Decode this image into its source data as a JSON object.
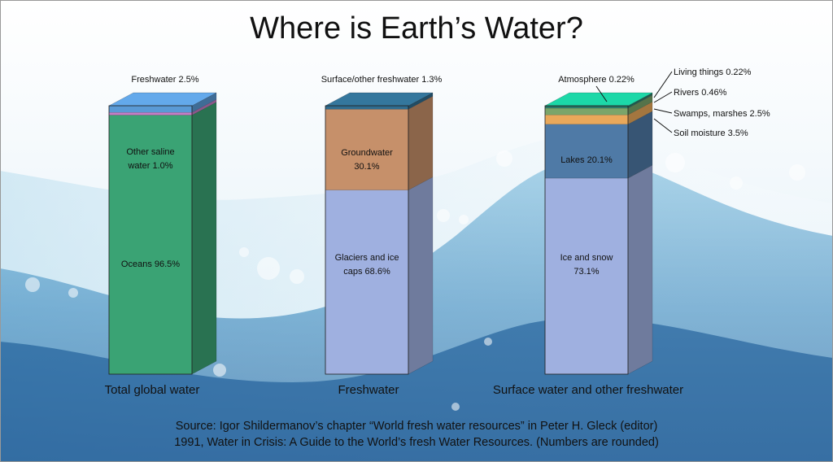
{
  "chart_data": {
    "type": "bar",
    "title": "Where is Earth’s Water?",
    "stacked": true,
    "columns": [
      {
        "name": "Total global water",
        "header_label": "Freshwater 2.5%",
        "segments": [
          {
            "label": "Oceans 96.5%",
            "value": 96.5,
            "color": "#3aa374"
          },
          {
            "label": "Other saline water 1.0%",
            "value": 1.0,
            "color": "#c87cc6"
          },
          {
            "label": "Freshwater 2.5%",
            "value": 2.5,
            "color": "#5a9ad6"
          }
        ]
      },
      {
        "name": "Freshwater",
        "header_label": "Surface/other freshwater 1.3%",
        "segments": [
          {
            "label": "Glaciers and ice caps 68.6%",
            "value": 68.6,
            "color": "#9fb0e0"
          },
          {
            "label": "Groundwater 30.1%",
            "value": 30.1,
            "color": "#c6906a"
          },
          {
            "label": "Surface/other freshwater 1.3%",
            "value": 1.3,
            "color": "#2f6c8f"
          }
        ]
      },
      {
        "name": "Surface water and other freshwater",
        "segments": [
          {
            "label": "Ice and snow 73.1%",
            "value": 73.1,
            "color": "#9fb0e0"
          },
          {
            "label": "Lakes 20.1%",
            "value": 20.1,
            "color": "#4f7aa6"
          },
          {
            "label": "Soil moisture 3.5%",
            "value": 3.5,
            "color": "#e9a85a"
          },
          {
            "label": "Swamps, marshes 2.5%",
            "value": 2.5,
            "color": "#7aa56a"
          },
          {
            "label": "Rivers 0.46%",
            "value": 0.46,
            "color": "#2f8a78"
          },
          {
            "label": "Living things 0.22%",
            "value": 0.22,
            "color": "#1f6b5a"
          },
          {
            "label": "Atmosphere 0.22%",
            "value": 0.22,
            "color": "#19c499"
          }
        ]
      }
    ],
    "inner_labels": {
      "col0": [
        "Other saline",
        "water 1.0%",
        "Oceans 96.5%"
      ],
      "col1": [
        "Groundwater",
        "30.1%",
        "Glaciers and ice",
        "caps 68.6%"
      ],
      "col2": [
        "Lakes 20.1%",
        "Ice and snow",
        "73.1%"
      ]
    },
    "callouts": [
      "Atmosphere 0.22%",
      "Living things 0.22%",
      "Rivers 0.46%",
      "Swamps, marshes 2.5%",
      "Soil moisture 3.5%"
    ],
    "source": [
      "Source: Igor Shildermanov’s chapter “World fresh water resources” in Peter H. Gleck (editor)",
      "1991, Water in Crisis: A Guide to the World’s fresh Water Resources. (Numbers are rounded)"
    ]
  }
}
